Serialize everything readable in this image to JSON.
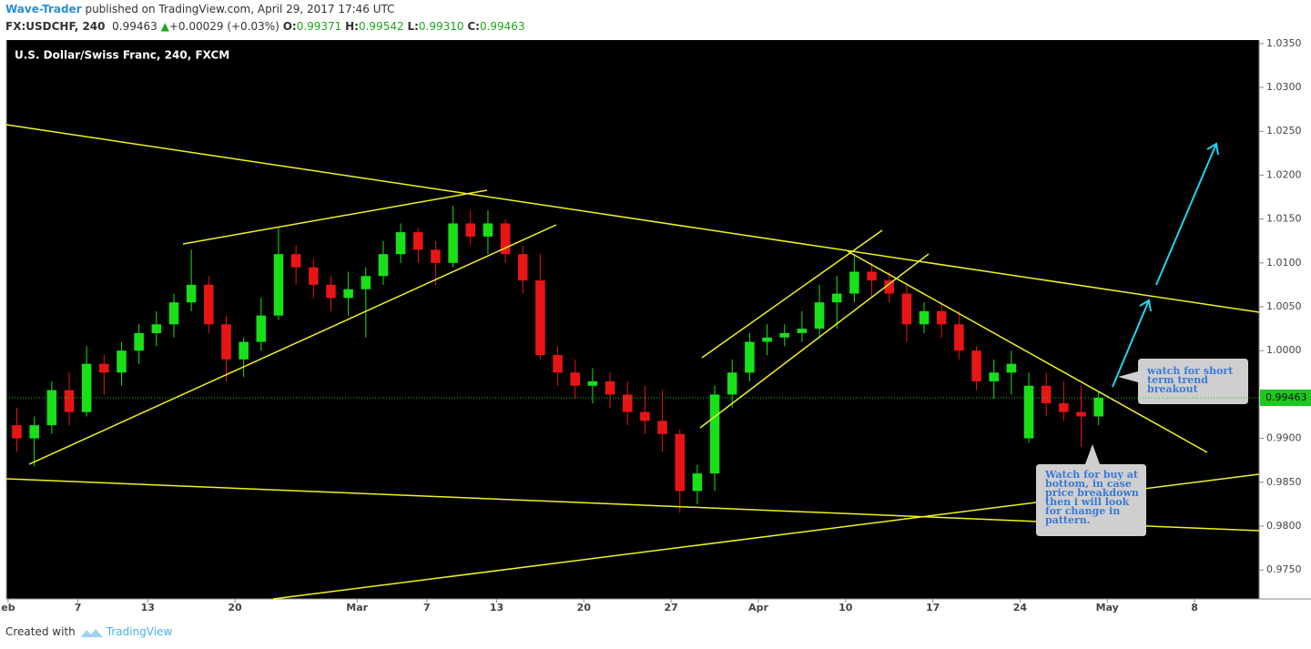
{
  "header": {
    "author": "Wave-Trader",
    "published": "published on TradingView.com, April 29, 2017 17:46 UTC",
    "symbol": "FX:USDCHF, 240",
    "last": "0.99463",
    "arrow": "▲",
    "change": "+0.00029 (+0.03%)",
    "open_label": "O:",
    "open": "0.99371",
    "high_label": "H:",
    "high": "0.99542",
    "low_label": "L:",
    "low": "0.99310",
    "close_label": "C:",
    "close": "0.99463"
  },
  "footer": {
    "created": "Created with",
    "brand": "TradingView"
  },
  "chart_data": {
    "type": "candlestick",
    "title": "U.S. Dollar/Swiss Franc, 240, FXCM",
    "x": [
      0.5,
      1.5,
      2.5,
      3.5,
      4.5,
      5.5,
      6.5,
      7.5,
      8.5,
      9.5,
      10.5,
      11.5,
      12.5,
      13.5,
      14.5,
      15.5,
      16.5,
      17.5,
      18.5,
      19.5,
      20.5,
      21.5,
      22.5,
      23.5,
      24.5,
      25.5,
      26.5,
      27.5,
      28.5,
      29.5,
      30.5,
      31.5,
      32.5,
      33.5,
      34.5,
      35.5,
      36.5,
      37.5,
      38.5,
      39.5,
      40.5,
      41.5,
      42.5,
      43.5,
      44.5,
      45.5,
      46.5,
      47.5,
      48.5,
      49.5,
      50.5,
      51.5,
      52.5,
      53.5,
      54.5,
      55.5,
      56.5,
      57.5,
      58.5,
      59.5,
      60.5,
      61.5,
      62.5
    ],
    "open": [
      0.9915,
      0.99,
      0.9915,
      0.9955,
      0.993,
      0.9985,
      0.9975,
      1.0,
      1.002,
      1.003,
      1.0055,
      1.0075,
      1.003,
      0.999,
      1.001,
      1.004,
      1.011,
      1.0095,
      1.0075,
      1.006,
      1.007,
      1.0085,
      1.011,
      1.0135,
      1.0115,
      1.01,
      1.0145,
      1.013,
      1.0145,
      1.011,
      1.008,
      0.9995,
      0.9975,
      0.996,
      0.9965,
      0.995,
      0.993,
      0.992,
      0.9905,
      0.984,
      0.986,
      0.995,
      0.9975,
      1.001,
      1.0015,
      1.002,
      1.0025,
      1.0055,
      1.0065,
      1.009,
      1.008,
      1.0065,
      1.003,
      1.0045,
      1.003,
      1.0,
      0.9965,
      0.9975,
      0.99,
      0.996,
      0.994,
      0.993,
      0.9925
    ],
    "high": [
      0.9935,
      0.9925,
      0.9965,
      0.9975,
      1.0005,
      0.9995,
      1.001,
      1.003,
      1.0045,
      1.0065,
      1.0115,
      1.0085,
      1.004,
      1.0015,
      1.006,
      1.014,
      1.012,
      1.0105,
      1.0085,
      1.009,
      1.0095,
      1.0125,
      1.0145,
      1.014,
      1.0125,
      1.0165,
      1.016,
      1.016,
      1.015,
      1.012,
      1.011,
      1.0005,
      0.999,
      0.998,
      0.9975,
      0.9965,
      0.996,
      0.9955,
      0.991,
      0.987,
      0.996,
      0.999,
      1.002,
      1.003,
      1.003,
      1.0045,
      1.0075,
      1.0085,
      1.011,
      1.01,
      1.009,
      1.0075,
      1.0055,
      1.0055,
      1.0045,
      1.0005,
      0.999,
      1.0,
      0.9975,
      0.9975,
      0.9965,
      0.996,
      0.9954
    ],
    "low": [
      0.9885,
      0.9868,
      0.9905,
      0.9915,
      0.9925,
      0.995,
      0.996,
      0.9985,
      1.0005,
      1.0015,
      1.0045,
      1.002,
      0.9965,
      0.997,
      1.0,
      1.0035,
      1.0075,
      1.006,
      1.0045,
      1.004,
      1.0015,
      1.0075,
      1.01,
      1.01,
      1.0075,
      1.0095,
      1.012,
      1.011,
      1.01,
      1.0065,
      0.999,
      0.996,
      0.9945,
      0.994,
      0.9935,
      0.9915,
      0.9905,
      0.9885,
      0.9815,
      0.9825,
      0.984,
      0.9935,
      0.9965,
      0.9995,
      1.0005,
      1.001,
      1.0015,
      1.0025,
      1.0055,
      1.006,
      1.0055,
      1.001,
      1.002,
      1.0015,
      0.999,
      0.9955,
      0.9945,
      0.995,
      0.9895,
      0.9925,
      0.992,
      0.989,
      0.9915
    ],
    "close": [
      0.99,
      0.9915,
      0.9955,
      0.993,
      0.9985,
      0.9975,
      1.0,
      1.002,
      1.003,
      1.0055,
      1.0075,
      1.003,
      0.999,
      1.001,
      1.004,
      1.011,
      1.0095,
      1.0075,
      1.006,
      1.007,
      1.0085,
      1.011,
      1.0135,
      1.0115,
      1.01,
      1.0145,
      1.013,
      1.0145,
      1.011,
      1.008,
      0.9995,
      0.9975,
      0.996,
      0.9965,
      0.995,
      0.993,
      0.992,
      0.9905,
      0.984,
      0.986,
      0.995,
      0.9975,
      1.001,
      1.0015,
      1.002,
      1.0025,
      1.0055,
      1.0065,
      1.009,
      1.008,
      1.0065,
      1.003,
      1.0045,
      1.003,
      1.0,
      0.9965,
      0.9975,
      0.9985,
      0.996,
      0.994,
      0.993,
      0.9925,
      0.99463
    ],
    "up_color": "#19e019",
    "down_color": "#e81515",
    "last_price": 0.99463,
    "xlim": [
      -0.1,
      71.7
    ],
    "xticks": [
      {
        "value": 0,
        "label": "eb"
      },
      {
        "value": 4,
        "label": "7"
      },
      {
        "value": 8,
        "label": "13"
      },
      {
        "value": 13,
        "label": "20"
      },
      {
        "value": 20,
        "label": "Mar"
      },
      {
        "value": 24,
        "label": "7"
      },
      {
        "value": 28,
        "label": "13"
      },
      {
        "value": 33,
        "label": "20"
      },
      {
        "value": 38,
        "label": "27"
      },
      {
        "value": 43,
        "label": "Apr"
      },
      {
        "value": 48,
        "label": "10"
      },
      {
        "value": 53,
        "label": "17"
      },
      {
        "value": 58,
        "label": "24"
      },
      {
        "value": 63,
        "label": "May"
      },
      {
        "value": 68,
        "label": "8"
      }
    ],
    "ylim": [
      0.9717,
      1.0354
    ],
    "yticks": [
      {
        "value": 0.975,
        "label": "0.9750"
      },
      {
        "value": 0.98,
        "label": "0.9800"
      },
      {
        "value": 0.985,
        "label": "0.9850"
      },
      {
        "value": 0.99,
        "label": "0.9900"
      },
      {
        "value": 1,
        "label": "1.0000"
      },
      {
        "value": 1.005,
        "label": "1.0050"
      },
      {
        "value": 1.01,
        "label": "1.0100"
      },
      {
        "value": 1.015,
        "label": "1.0150"
      },
      {
        "value": 1.02,
        "label": "1.0200"
      },
      {
        "value": 1.025,
        "label": "1.0250"
      },
      {
        "value": 1.03,
        "label": "1.0300"
      },
      {
        "value": 1.035,
        "label": "1.0350"
      }
    ],
    "annotations": [
      "watch for short term trend breakout",
      "Watch for buy at bottom, in case price breakdown then i will look for change in pattern."
    ]
  }
}
